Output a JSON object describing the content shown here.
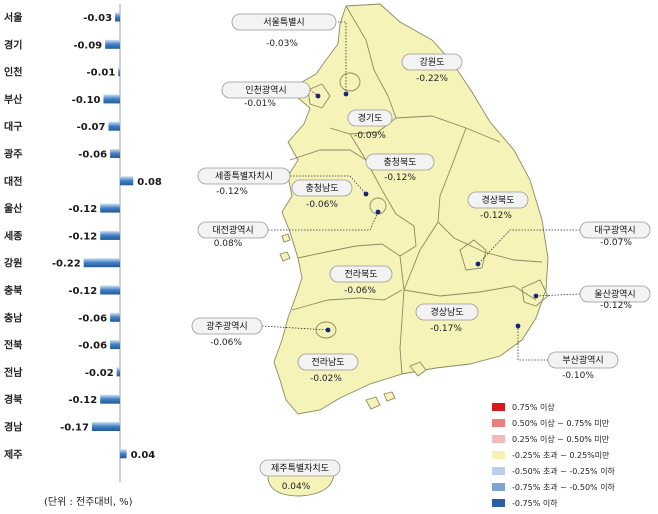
{
  "chart_data": {
    "type": "bar",
    "orientation": "horizontal",
    "categories": [
      "서울",
      "경기",
      "인천",
      "부산",
      "대구",
      "광주",
      "대전",
      "울산",
      "세종",
      "강원",
      "충북",
      "충남",
      "전북",
      "전남",
      "경북",
      "경남",
      "제주"
    ],
    "values": [
      -0.03,
      -0.09,
      -0.01,
      -0.1,
      -0.07,
      -0.06,
      0.08,
      -0.12,
      -0.12,
      -0.22,
      -0.12,
      -0.06,
      -0.06,
      -0.02,
      -0.12,
      -0.17,
      0.04
    ],
    "value_labels": [
      "-0.03",
      "-0.09",
      "-0.01",
      "-0.10",
      "-0.07",
      "-0.06",
      "0.08",
      "-0.12",
      "-0.12",
      "-0.22",
      "-0.12",
      "-0.06",
      "-0.06",
      "-0.02",
      "-0.12",
      "-0.17",
      "0.04"
    ],
    "unit_note": "(단위 : 전주대비, %)",
    "colors": {
      "negative": "#3f7fc4",
      "positive": "#3f7fc4",
      "highlight": "#a9c9ea"
    }
  },
  "map": {
    "regions": [
      {
        "name": "서울특별시",
        "value": "-0.03%"
      },
      {
        "name": "강원도",
        "value": "-0.22%"
      },
      {
        "name": "인천광역시",
        "value": "-0.01%"
      },
      {
        "name": "경기도",
        "value": "-0.09%"
      },
      {
        "name": "충청북도",
        "value": "-0.12%"
      },
      {
        "name": "세종특별자치시",
        "value": "-0.12%"
      },
      {
        "name": "충청남도",
        "value": "-0.06%"
      },
      {
        "name": "경상북도",
        "value": "-0.12%"
      },
      {
        "name": "대전광역시",
        "value": "0.08%"
      },
      {
        "name": "대구광역시",
        "value": "-0.07%"
      },
      {
        "name": "전라북도",
        "value": "-0.06%"
      },
      {
        "name": "울산광역시",
        "value": "-0.12%"
      },
      {
        "name": "광주광역시",
        "value": "-0.06%"
      },
      {
        "name": "경상남도",
        "value": "-0.17%"
      },
      {
        "name": "부산광역시",
        "value": "-0.10%"
      },
      {
        "name": "전라남도",
        "value": "-0.02%"
      },
      {
        "name": "제주특별자치도",
        "value": "0.04%"
      }
    ],
    "fill_color": "#f5f3b8"
  },
  "legend": [
    {
      "label": "0.75% 이상",
      "color": "#d7191c"
    },
    {
      "label": "0.50% 이상 ~ 0.75% 미만",
      "color": "#e8807f"
    },
    {
      "label": "0.25% 이상 ~ 0.50% 미만",
      "color": "#f4b8b8"
    },
    {
      "label": "-0.25% 초과 ~ 0.25%미만",
      "color": "#f5f3b8"
    },
    {
      "label": "-0.50% 초과 ~ -0.25% 이하",
      "color": "#b9cde8"
    },
    {
      "label": "-0.75% 초과 ~ -0.50% 이하",
      "color": "#7fa3d3"
    },
    {
      "label": "-0.75% 이하",
      "color": "#2b5ea8"
    }
  ]
}
